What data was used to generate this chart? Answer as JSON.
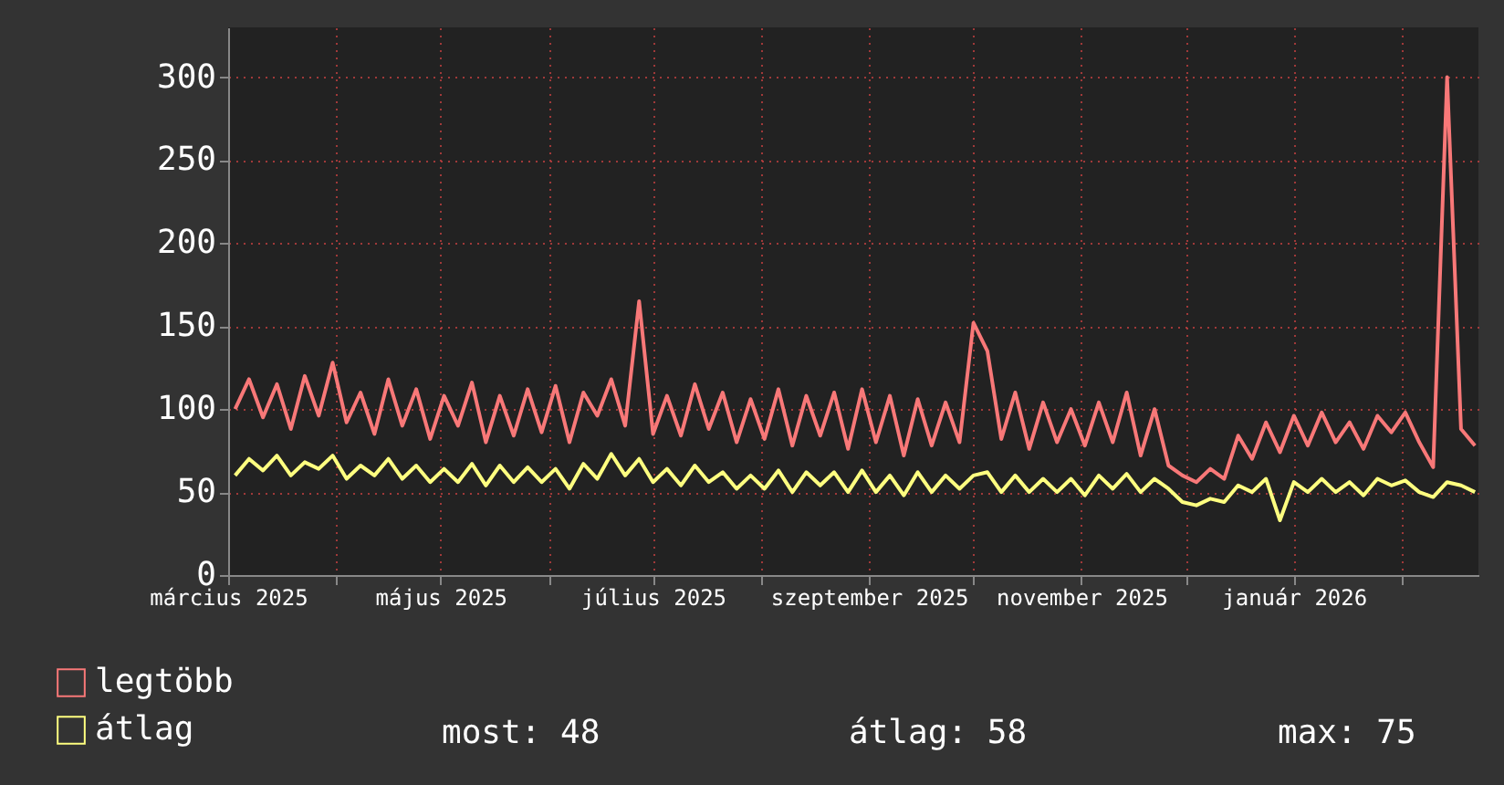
{
  "chart_data": {
    "type": "line",
    "x": [
      "2025-03-03",
      "2025-03-07",
      "2025-03-11",
      "2025-03-15",
      "2025-03-19",
      "2025-03-23",
      "2025-03-27",
      "2025-03-31",
      "2025-04-04",
      "2025-04-08",
      "2025-04-12",
      "2025-04-16",
      "2025-04-20",
      "2025-04-24",
      "2025-04-28",
      "2025-05-02",
      "2025-05-06",
      "2025-05-10",
      "2025-05-14",
      "2025-05-18",
      "2025-05-22",
      "2025-05-26",
      "2025-05-30",
      "2025-06-03",
      "2025-06-07",
      "2025-06-11",
      "2025-06-15",
      "2025-06-19",
      "2025-06-23",
      "2025-06-27",
      "2025-07-01",
      "2025-07-05",
      "2025-07-09",
      "2025-07-13",
      "2025-07-17",
      "2025-07-21",
      "2025-07-25",
      "2025-07-29",
      "2025-08-02",
      "2025-08-06",
      "2025-08-10",
      "2025-08-14",
      "2025-08-18",
      "2025-08-22",
      "2025-08-26",
      "2025-08-30",
      "2025-09-03",
      "2025-09-07",
      "2025-09-11",
      "2025-09-15",
      "2025-09-19",
      "2025-09-23",
      "2025-09-27",
      "2025-10-01",
      "2025-10-05",
      "2025-10-09",
      "2025-10-13",
      "2025-10-17",
      "2025-10-21",
      "2025-10-25",
      "2025-10-29",
      "2025-11-02",
      "2025-11-06",
      "2025-11-10",
      "2025-11-14",
      "2025-11-18",
      "2025-11-22",
      "2025-11-26",
      "2025-11-30",
      "2025-12-04",
      "2025-12-08",
      "2025-12-12",
      "2025-12-16",
      "2025-12-20",
      "2025-12-24",
      "2025-12-28",
      "2026-01-01",
      "2026-01-05",
      "2026-01-09",
      "2026-01-13",
      "2026-01-17",
      "2026-01-21",
      "2026-01-25",
      "2026-01-29",
      "2026-02-02",
      "2026-02-06",
      "2026-02-10",
      "2026-02-14",
      "2026-02-18",
      "2026-02-22"
    ],
    "series": [
      {
        "name": "legtöbb",
        "color": "#f87878",
        "values": [
          100,
          118,
          95,
          115,
          88,
          120,
          96,
          128,
          92,
          110,
          85,
          118,
          90,
          112,
          82,
          108,
          90,
          116,
          80,
          108,
          84,
          112,
          86,
          114,
          80,
          110,
          96,
          118,
          90,
          165,
          85,
          108,
          84,
          115,
          88,
          110,
          80,
          106,
          82,
          112,
          78,
          108,
          84,
          110,
          76,
          112,
          80,
          108,
          72,
          106,
          78,
          104,
          80,
          152,
          135,
          82,
          110,
          76,
          104,
          80,
          100,
          78,
          104,
          80,
          110,
          72,
          100,
          66,
          60,
          56,
          64,
          58,
          84,
          70,
          92,
          74,
          96,
          78,
          98,
          80,
          92,
          76,
          96,
          86,
          98,
          80,
          65,
          300,
          88,
          78
        ]
      },
      {
        "name": "átlag",
        "color": "#ffff80",
        "values": [
          60,
          70,
          63,
          72,
          60,
          68,
          64,
          72,
          58,
          66,
          60,
          70,
          58,
          66,
          56,
          64,
          56,
          67,
          54,
          66,
          56,
          65,
          56,
          64,
          52,
          67,
          58,
          73,
          60,
          70,
          56,
          64,
          54,
          66,
          56,
          62,
          52,
          60,
          52,
          63,
          50,
          62,
          54,
          62,
          50,
          63,
          50,
          60,
          48,
          62,
          50,
          60,
          52,
          60,
          62,
          50,
          60,
          50,
          58,
          50,
          58,
          48,
          60,
          52,
          61,
          50,
          58,
          52,
          44,
          42,
          46,
          44,
          54,
          50,
          58,
          33,
          56,
          50,
          58,
          50,
          56,
          48,
          58,
          54,
          57,
          50,
          47,
          56,
          54,
          50
        ]
      }
    ],
    "xlim": [
      "2025-03-01",
      "2026-02-23"
    ],
    "xticks": [
      {
        "value": "2025-03-01",
        "label": "március 2025"
      },
      {
        "value": "2025-04-01",
        "label": null
      },
      {
        "value": "2025-05-01",
        "label": "május 2025"
      },
      {
        "value": "2025-06-01",
        "label": null
      },
      {
        "value": "2025-07-01",
        "label": "július 2025"
      },
      {
        "value": "2025-08-01",
        "label": null
      },
      {
        "value": "2025-09-01",
        "label": "szeptember 2025"
      },
      {
        "value": "2025-10-01",
        "label": null
      },
      {
        "value": "2025-11-01",
        "label": "november 2025"
      },
      {
        "value": "2025-12-01",
        "label": null
      },
      {
        "value": "2026-01-01",
        "label": "január 2026"
      },
      {
        "value": "2026-02-01",
        "label": null
      }
    ],
    "ylim": [
      0,
      330
    ],
    "yticks": [
      0,
      50,
      100,
      150,
      200,
      250,
      300
    ],
    "grid": true,
    "legend": "bottom left",
    "marker": "none",
    "line_style": "solid",
    "annotations": [
      "most: 48",
      "átlag: 58",
      "max: 75"
    ]
  }
}
